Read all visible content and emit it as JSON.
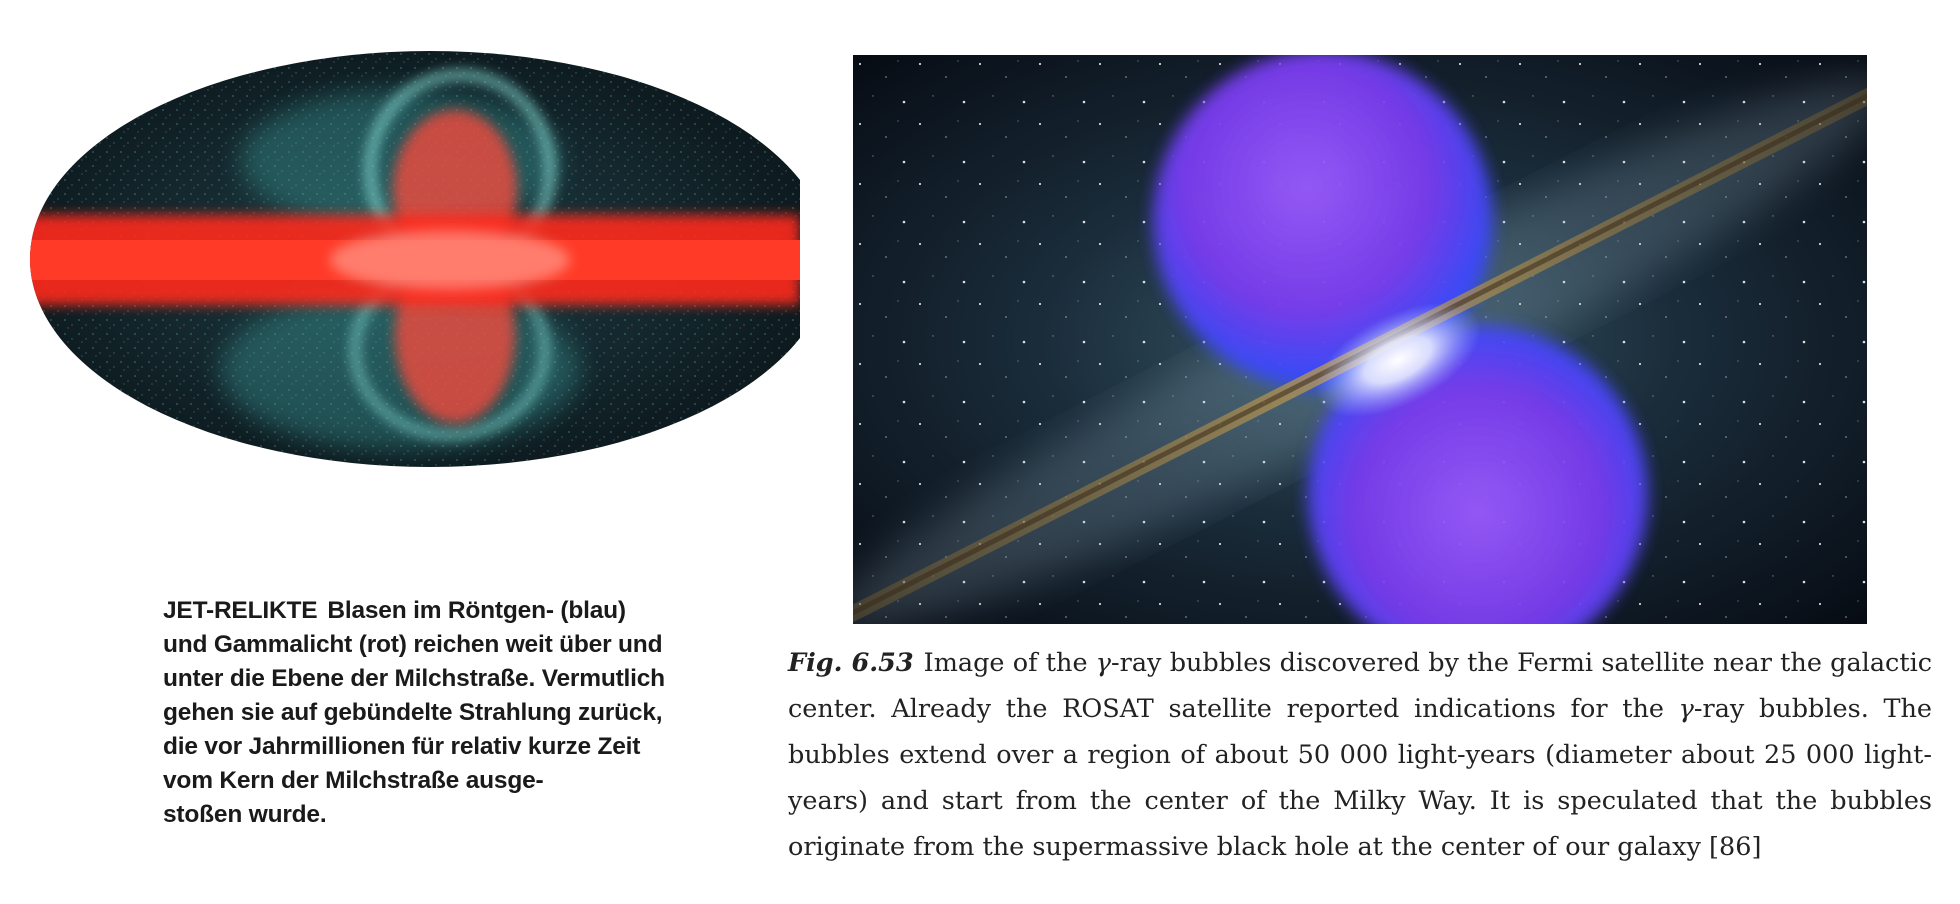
{
  "german_caption": {
    "lead": "JET-RELIKTE",
    "lines": [
      "Blasen im Röntgen- (blau)",
      "und Gammalicht (rot) reichen weit über und",
      "unter die Ebene der Milchstraße. Vermutlich",
      "gehen sie auf gebündelte Strahlung zurück,",
      "die vor Jahrmillionen für relativ kurze Zeit",
      "vom Kern der Milchstraße ausge-",
      "stoßen wurde."
    ]
  },
  "figure_caption": {
    "label": "Fig. 6.53",
    "lines": [
      [
        "Image of the ",
        "γ",
        "-ray bubbles discovered by the Fermi satellite near the galactic"
      ],
      [
        "center. Already the ROSAT satellite reported indications for the ",
        "γ",
        "-ray bubbles. The"
      ],
      [
        "bubbles extend over a region of about 50 000 light-years (diameter about 25 000 light-"
      ],
      [
        "years) and start from the center of the Milky Way. It is speculated that the bubbles"
      ],
      [
        "originate from the supermassive black hole at the center of our galaxy [86]"
      ]
    ]
  },
  "colors": {
    "gamma_red": "#ff2a1a",
    "xray_cyan": "#6fe0d8",
    "bubble_violet": "#8a3cff",
    "bubble_blue": "#2b4bff",
    "space_dark": "#0b1420"
  }
}
